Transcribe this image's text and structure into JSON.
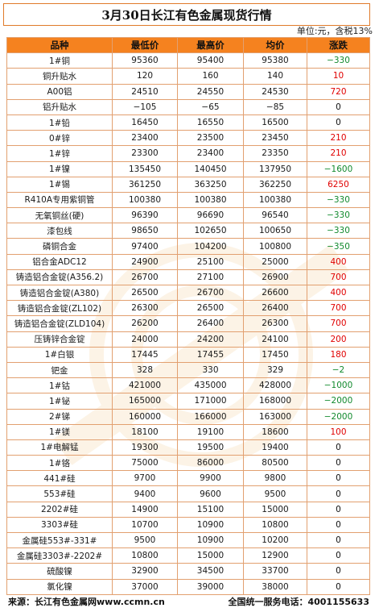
{
  "title": "3月30日长江有色金属现货行情",
  "unit_note": "单位:元，含税13%",
  "columns": [
    "品种",
    "最低价",
    "最高价",
    "均价",
    "涨跌"
  ],
  "rows": [
    {
      "name": "1#铜",
      "low": "95360",
      "high": "95400",
      "avg": "95380",
      "change": "−330",
      "trend": "down"
    },
    {
      "name": "铜升贴水",
      "low": "120",
      "high": "160",
      "avg": "140",
      "change": "10",
      "trend": "up"
    },
    {
      "name": "A00铝",
      "low": "24510",
      "high": "24550",
      "avg": "24530",
      "change": "720",
      "trend": "up"
    },
    {
      "name": "铝升贴水",
      "low": "−105",
      "high": "−65",
      "avg": "−85",
      "change": "0",
      "trend": "flat"
    },
    {
      "name": "1#铅",
      "low": "16450",
      "high": "16550",
      "avg": "16500",
      "change": "0",
      "trend": "flat"
    },
    {
      "name": "0#锌",
      "low": "23400",
      "high": "23500",
      "avg": "23450",
      "change": "210",
      "trend": "up"
    },
    {
      "name": "1#锌",
      "low": "23300",
      "high": "23400",
      "avg": "23350",
      "change": "210",
      "trend": "up"
    },
    {
      "name": "1#镍",
      "low": "135450",
      "high": "140450",
      "avg": "137950",
      "change": "−1600",
      "trend": "down"
    },
    {
      "name": "1#锡",
      "low": "361250",
      "high": "363250",
      "avg": "362250",
      "change": "6250",
      "trend": "up"
    },
    {
      "name": "R410A专用紫铜管",
      "low": "100380",
      "high": "100380",
      "avg": "100380",
      "change": "−330",
      "trend": "down"
    },
    {
      "name": "无氧铜丝(硬)",
      "low": "96390",
      "high": "96690",
      "avg": "96540",
      "change": "−330",
      "trend": "down"
    },
    {
      "name": "漆包线",
      "low": "98650",
      "high": "102650",
      "avg": "100650",
      "change": "−330",
      "trend": "down"
    },
    {
      "name": "磷铜合金",
      "low": "97400",
      "high": "104200",
      "avg": "100800",
      "change": "−350",
      "trend": "down"
    },
    {
      "name": "铝合金ADC12",
      "low": "24900",
      "high": "25100",
      "avg": "25000",
      "change": "400",
      "trend": "up"
    },
    {
      "name": "铸造铝合金锭(A356.2)",
      "low": "26700",
      "high": "27100",
      "avg": "26900",
      "change": "700",
      "trend": "up"
    },
    {
      "name": "铸造铝合金锭(A380)",
      "low": "26500",
      "high": "26700",
      "avg": "26600",
      "change": "400",
      "trend": "up"
    },
    {
      "name": "铸造铝合金锭(ZL102)",
      "low": "26300",
      "high": "26500",
      "avg": "26400",
      "change": "700",
      "trend": "up"
    },
    {
      "name": "铸造铝合金锭(ZLD104)",
      "low": "26200",
      "high": "26400",
      "avg": "26300",
      "change": "700",
      "trend": "up"
    },
    {
      "name": "压铸锌合金锭",
      "low": "24000",
      "high": "24200",
      "avg": "24100",
      "change": "200",
      "trend": "up"
    },
    {
      "name": "1#白银",
      "low": "17445",
      "high": "17455",
      "avg": "17450",
      "change": "180",
      "trend": "up"
    },
    {
      "name": "钯金",
      "low": "328",
      "high": "330",
      "avg": "329",
      "change": "−2",
      "trend": "down"
    },
    {
      "name": "1#钴",
      "low": "421000",
      "high": "435000",
      "avg": "428000",
      "change": "−1000",
      "trend": "down"
    },
    {
      "name": "1#铋",
      "low": "165000",
      "high": "171000",
      "avg": "168000",
      "change": "−2000",
      "trend": "down"
    },
    {
      "name": "2#锑",
      "low": "160000",
      "high": "166000",
      "avg": "163000",
      "change": "−2000",
      "trend": "down"
    },
    {
      "name": "1#镁",
      "low": "18100",
      "high": "19100",
      "avg": "18600",
      "change": "100",
      "trend": "up"
    },
    {
      "name": "1#电解锰",
      "low": "19300",
      "high": "19500",
      "avg": "19400",
      "change": "0",
      "trend": "flat"
    },
    {
      "name": "1#铬",
      "low": "75000",
      "high": "86000",
      "avg": "80500",
      "change": "0",
      "trend": "flat"
    },
    {
      "name": "441#硅",
      "low": "9700",
      "high": "9900",
      "avg": "9800",
      "change": "0",
      "trend": "flat"
    },
    {
      "name": "553#硅",
      "low": "9400",
      "high": "9600",
      "avg": "9500",
      "change": "0",
      "trend": "flat"
    },
    {
      "name": "2202#硅",
      "low": "14900",
      "high": "15100",
      "avg": "15000",
      "change": "0",
      "trend": "flat"
    },
    {
      "name": "3303#硅",
      "low": "10700",
      "high": "10900",
      "avg": "10800",
      "change": "0",
      "trend": "flat"
    },
    {
      "name": "金属硅553#-331#",
      "low": "9500",
      "high": "10900",
      "avg": "10200",
      "change": "0",
      "trend": "flat"
    },
    {
      "name": "金属硅3303#-2202#",
      "low": "10800",
      "high": "15000",
      "avg": "12900",
      "change": "0",
      "trend": "flat"
    },
    {
      "name": "硫酸镍",
      "low": "32900",
      "high": "34500",
      "avg": "33700",
      "change": "0",
      "trend": "flat"
    },
    {
      "name": "氯化镍",
      "low": "37000",
      "high": "39000",
      "avg": "38000",
      "change": "0",
      "trend": "flat"
    }
  ],
  "footer": {
    "source": "来源：长江有色金属网www.ccmn.cn",
    "hotline": "全国统一服务电话：4001155633"
  },
  "watermark_text": "长江有色金属网 www.ccmn.cn",
  "colors": {
    "header": "#f5821f",
    "up": "#e00000",
    "down": "#128a2e",
    "border": "#e2a070"
  }
}
